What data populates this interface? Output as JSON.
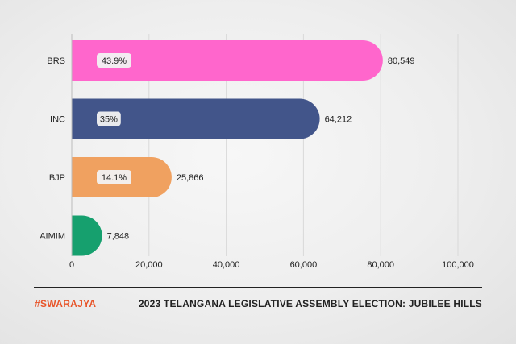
{
  "chart_data": {
    "type": "bar",
    "orientation": "horizontal",
    "categories": [
      "BRS",
      "INC",
      "BJP",
      "AIMIM"
    ],
    "values": [
      80549,
      64212,
      25866,
      7848
    ],
    "value_labels": [
      "80,549",
      "64,212",
      "25,866",
      "7,848"
    ],
    "percent_labels": [
      "43.9%",
      "35%",
      "14.1%",
      ""
    ],
    "colors": [
      "#ff66cc",
      "#42558a",
      "#f0a160",
      "#16a06e"
    ],
    "xlim": [
      0,
      100000
    ],
    "xticks": [
      0,
      20000,
      40000,
      60000,
      80000,
      100000
    ],
    "xtick_labels": [
      "0",
      "20,000",
      "40,000",
      "60,000",
      "80,000",
      "100,000"
    ],
    "grid": true,
    "title": "2023 TELANGANA LEGISLATIVE ASSEMBLY ELECTION: JUBILEE HILLS",
    "xlabel": "",
    "ylabel": ""
  },
  "footer": {
    "brand": "#SWARAJYA",
    "title": "2023 TELANGANA LEGISLATIVE ASSEMBLY ELECTION: JUBILEE HILLS"
  }
}
